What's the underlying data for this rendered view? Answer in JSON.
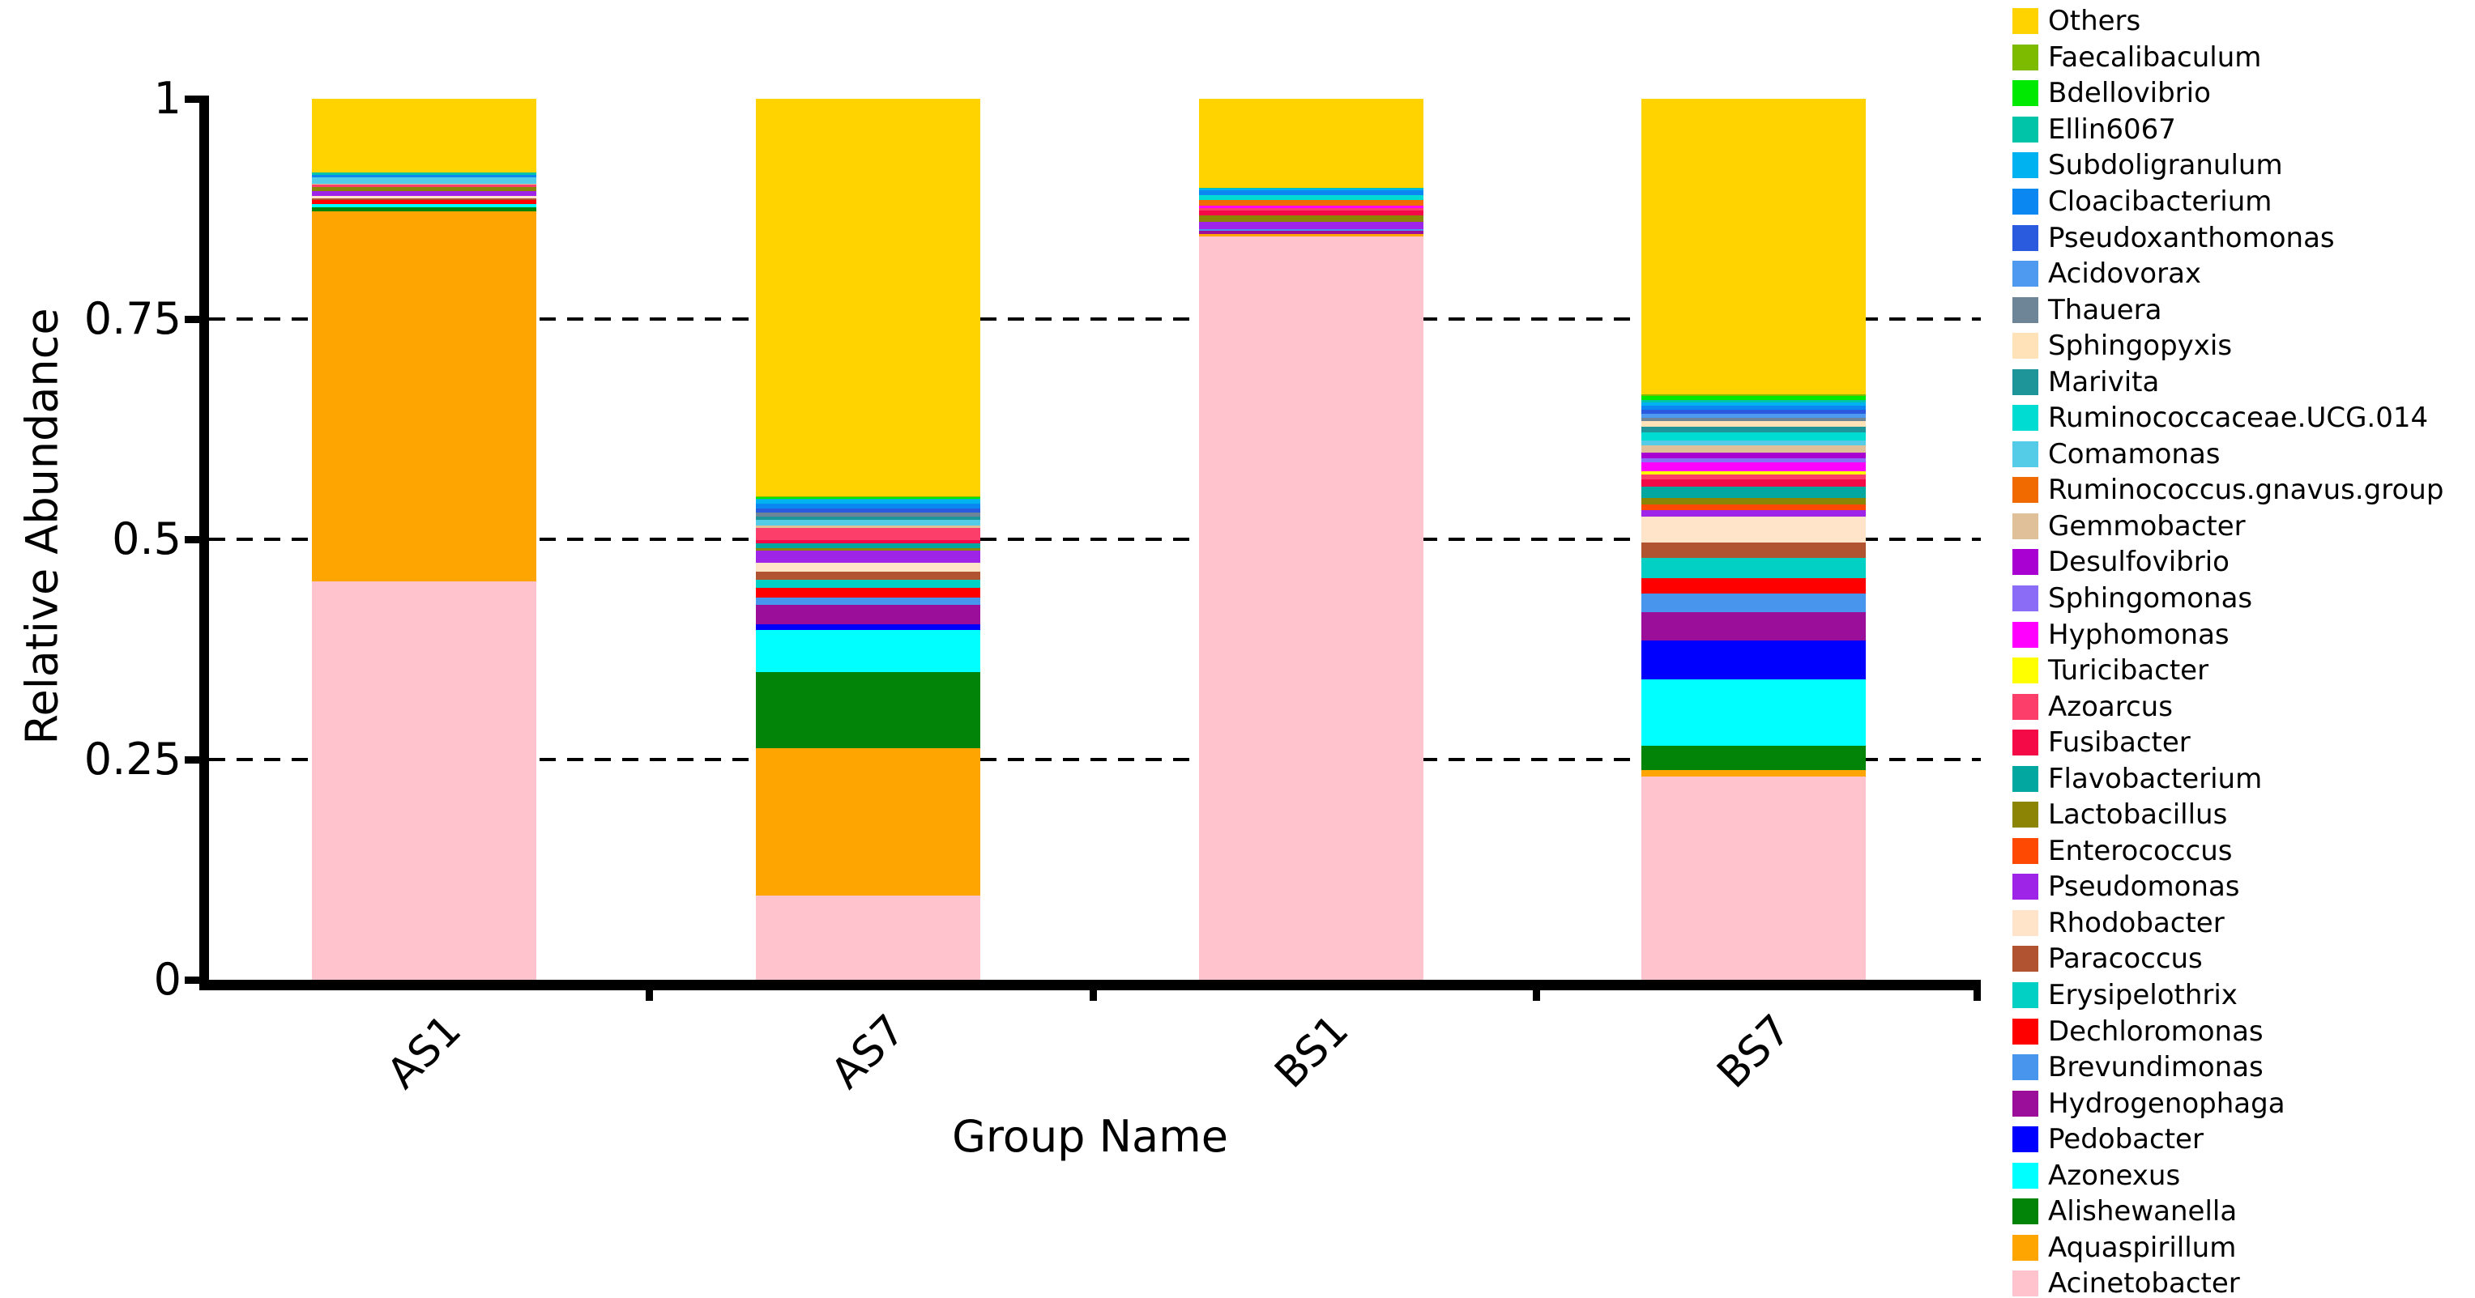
{
  "chart_data": {
    "type": "bar",
    "subtype": "stacked-vertical",
    "title": "",
    "xlabel": "Group Name",
    "ylabel": "Relative Abundance",
    "ylim": [
      0,
      1
    ],
    "y_ticks": [
      {
        "value": 0,
        "label": "0"
      },
      {
        "value": 0.25,
        "label": "0.25"
      },
      {
        "value": 0.5,
        "label": "0.5"
      },
      {
        "value": 0.75,
        "label": "0.75"
      },
      {
        "value": 1,
        "label": "1"
      }
    ],
    "gridlines": {
      "style": "dashed",
      "color": "#000000",
      "values": [
        0.25,
        0.5,
        0.75
      ]
    },
    "legend_position": "right",
    "categories": [
      "AS1",
      "AS7",
      "BS1",
      "BS7"
    ],
    "taxa": [
      {
        "name": "Others",
        "color": "#FFD300"
      },
      {
        "name": "Faecalibaculum",
        "color": "#7CBB00"
      },
      {
        "name": "Bdellovibrio",
        "color": "#00E900"
      },
      {
        "name": "Ellin6067",
        "color": "#00C4A7"
      },
      {
        "name": "Subdoligranulum",
        "color": "#00B3F0"
      },
      {
        "name": "Cloacibacterium",
        "color": "#0A87F0"
      },
      {
        "name": "Pseudoxanthomonas",
        "color": "#2A5BDE"
      },
      {
        "name": "Acidovorax",
        "color": "#4E9AF0"
      },
      {
        "name": "Thauera",
        "color": "#6D8596"
      },
      {
        "name": "Sphingopyxis",
        "color": "#FFE2B8"
      },
      {
        "name": "Marivita",
        "color": "#1D9599"
      },
      {
        "name": "Ruminococcaceae.UCG.014",
        "color": "#00DCD2"
      },
      {
        "name": "Comamonas",
        "color": "#54CCE8"
      },
      {
        "name": "Ruminococcus.gnavus.group",
        "color": "#F06A00"
      },
      {
        "name": "Gemmobacter",
        "color": "#DFC098"
      },
      {
        "name": "Desulfovibrio",
        "color": "#A801D1"
      },
      {
        "name": "Sphingomonas",
        "color": "#8B6CF6"
      },
      {
        "name": "Hyphomonas",
        "color": "#FF00FF"
      },
      {
        "name": "Turicibacter",
        "color": "#FFFF00"
      },
      {
        "name": "Azoarcus",
        "color": "#FC3E6B"
      },
      {
        "name": "Fusibacter",
        "color": "#F50A48"
      },
      {
        "name": "Flavobacterium",
        "color": "#02A79F"
      },
      {
        "name": "Lactobacillus",
        "color": "#8C8405"
      },
      {
        "name": "Enterococcus",
        "color": "#FE4902"
      },
      {
        "name": "Pseudomonas",
        "color": "#9E24E8"
      },
      {
        "name": "Rhodobacter",
        "color": "#FFE4C9"
      },
      {
        "name": "Paracoccus",
        "color": "#B15230"
      },
      {
        "name": "Erysipelothrix",
        "color": "#02D0C5"
      },
      {
        "name": "Dechloromonas",
        "color": "#FF0000"
      },
      {
        "name": "Brevundimonas",
        "color": "#4895EE"
      },
      {
        "name": "Hydrogenophaga",
        "color": "#9B0E99"
      },
      {
        "name": "Pedobacter",
        "color": "#0000FF"
      },
      {
        "name": "Azonexus",
        "color": "#00FFFF"
      },
      {
        "name": "Alishewanella",
        "color": "#028408"
      },
      {
        "name": "Aquaspirillum",
        "color": "#FFA502"
      },
      {
        "name": "Acinetobacter",
        "color": "#FFC3CE"
      }
    ],
    "series_note": "values aligned to taxa order above (legend top to bottom); stacking order in bars is reversed (Acinetobacter at bottom, Others on top)",
    "values": {
      "AS1": [
        0.084,
        0,
        0,
        0.0025,
        0,
        0.003,
        0,
        0,
        0,
        0,
        0,
        0,
        0.007,
        0,
        0.001,
        0,
        0,
        0,
        0,
        0.003,
        0,
        0,
        0.0042,
        0,
        0.006,
        0.002,
        0.0024,
        0,
        0.0045,
        0,
        0,
        0,
        0.0036,
        0.005,
        0.42,
        0.452
      ],
      "AS7": [
        0.4513,
        0.001,
        0.002,
        0.001,
        0.004,
        0.0054,
        0.005,
        0,
        0.005,
        0,
        0.003,
        0,
        0.0069,
        0,
        0.003,
        0,
        0,
        0,
        0,
        0.0134,
        0.0036,
        0.006,
        0.002,
        0,
        0.014,
        0.0104,
        0.009,
        0.009,
        0.011,
        0.009,
        0.022,
        0.006,
        0.048,
        0.086,
        0.168,
        0.095
      ],
      "BS1": [
        0.101,
        0,
        0,
        0.001,
        0.002,
        0.005,
        0,
        0,
        0,
        0,
        0,
        0.006,
        0,
        0.006,
        0,
        0,
        0,
        0.003,
        0,
        0.0027,
        0.0054,
        0,
        0.008,
        0,
        0.008,
        0,
        0,
        0,
        0,
        0.002,
        0.003,
        0,
        0,
        0,
        0.003,
        0.843
      ],
      "BS7": [
        0.335,
        0.0021,
        0.005,
        0.0024,
        0.0036,
        0.0045,
        0.0045,
        0.0047,
        0.0042,
        0.006,
        0.0068,
        0.0089,
        0.006,
        0,
        0.008,
        0.0069,
        0.0045,
        0.0095,
        0.0039,
        0.0059,
        0.008,
        0.0129,
        0.0074,
        0.0065,
        0.0069,
        0.0295,
        0.0173,
        0.0236,
        0.0168,
        0.022,
        0.0316,
        0.044,
        0.076,
        0.027,
        0.008,
        0.23
      ]
    }
  }
}
